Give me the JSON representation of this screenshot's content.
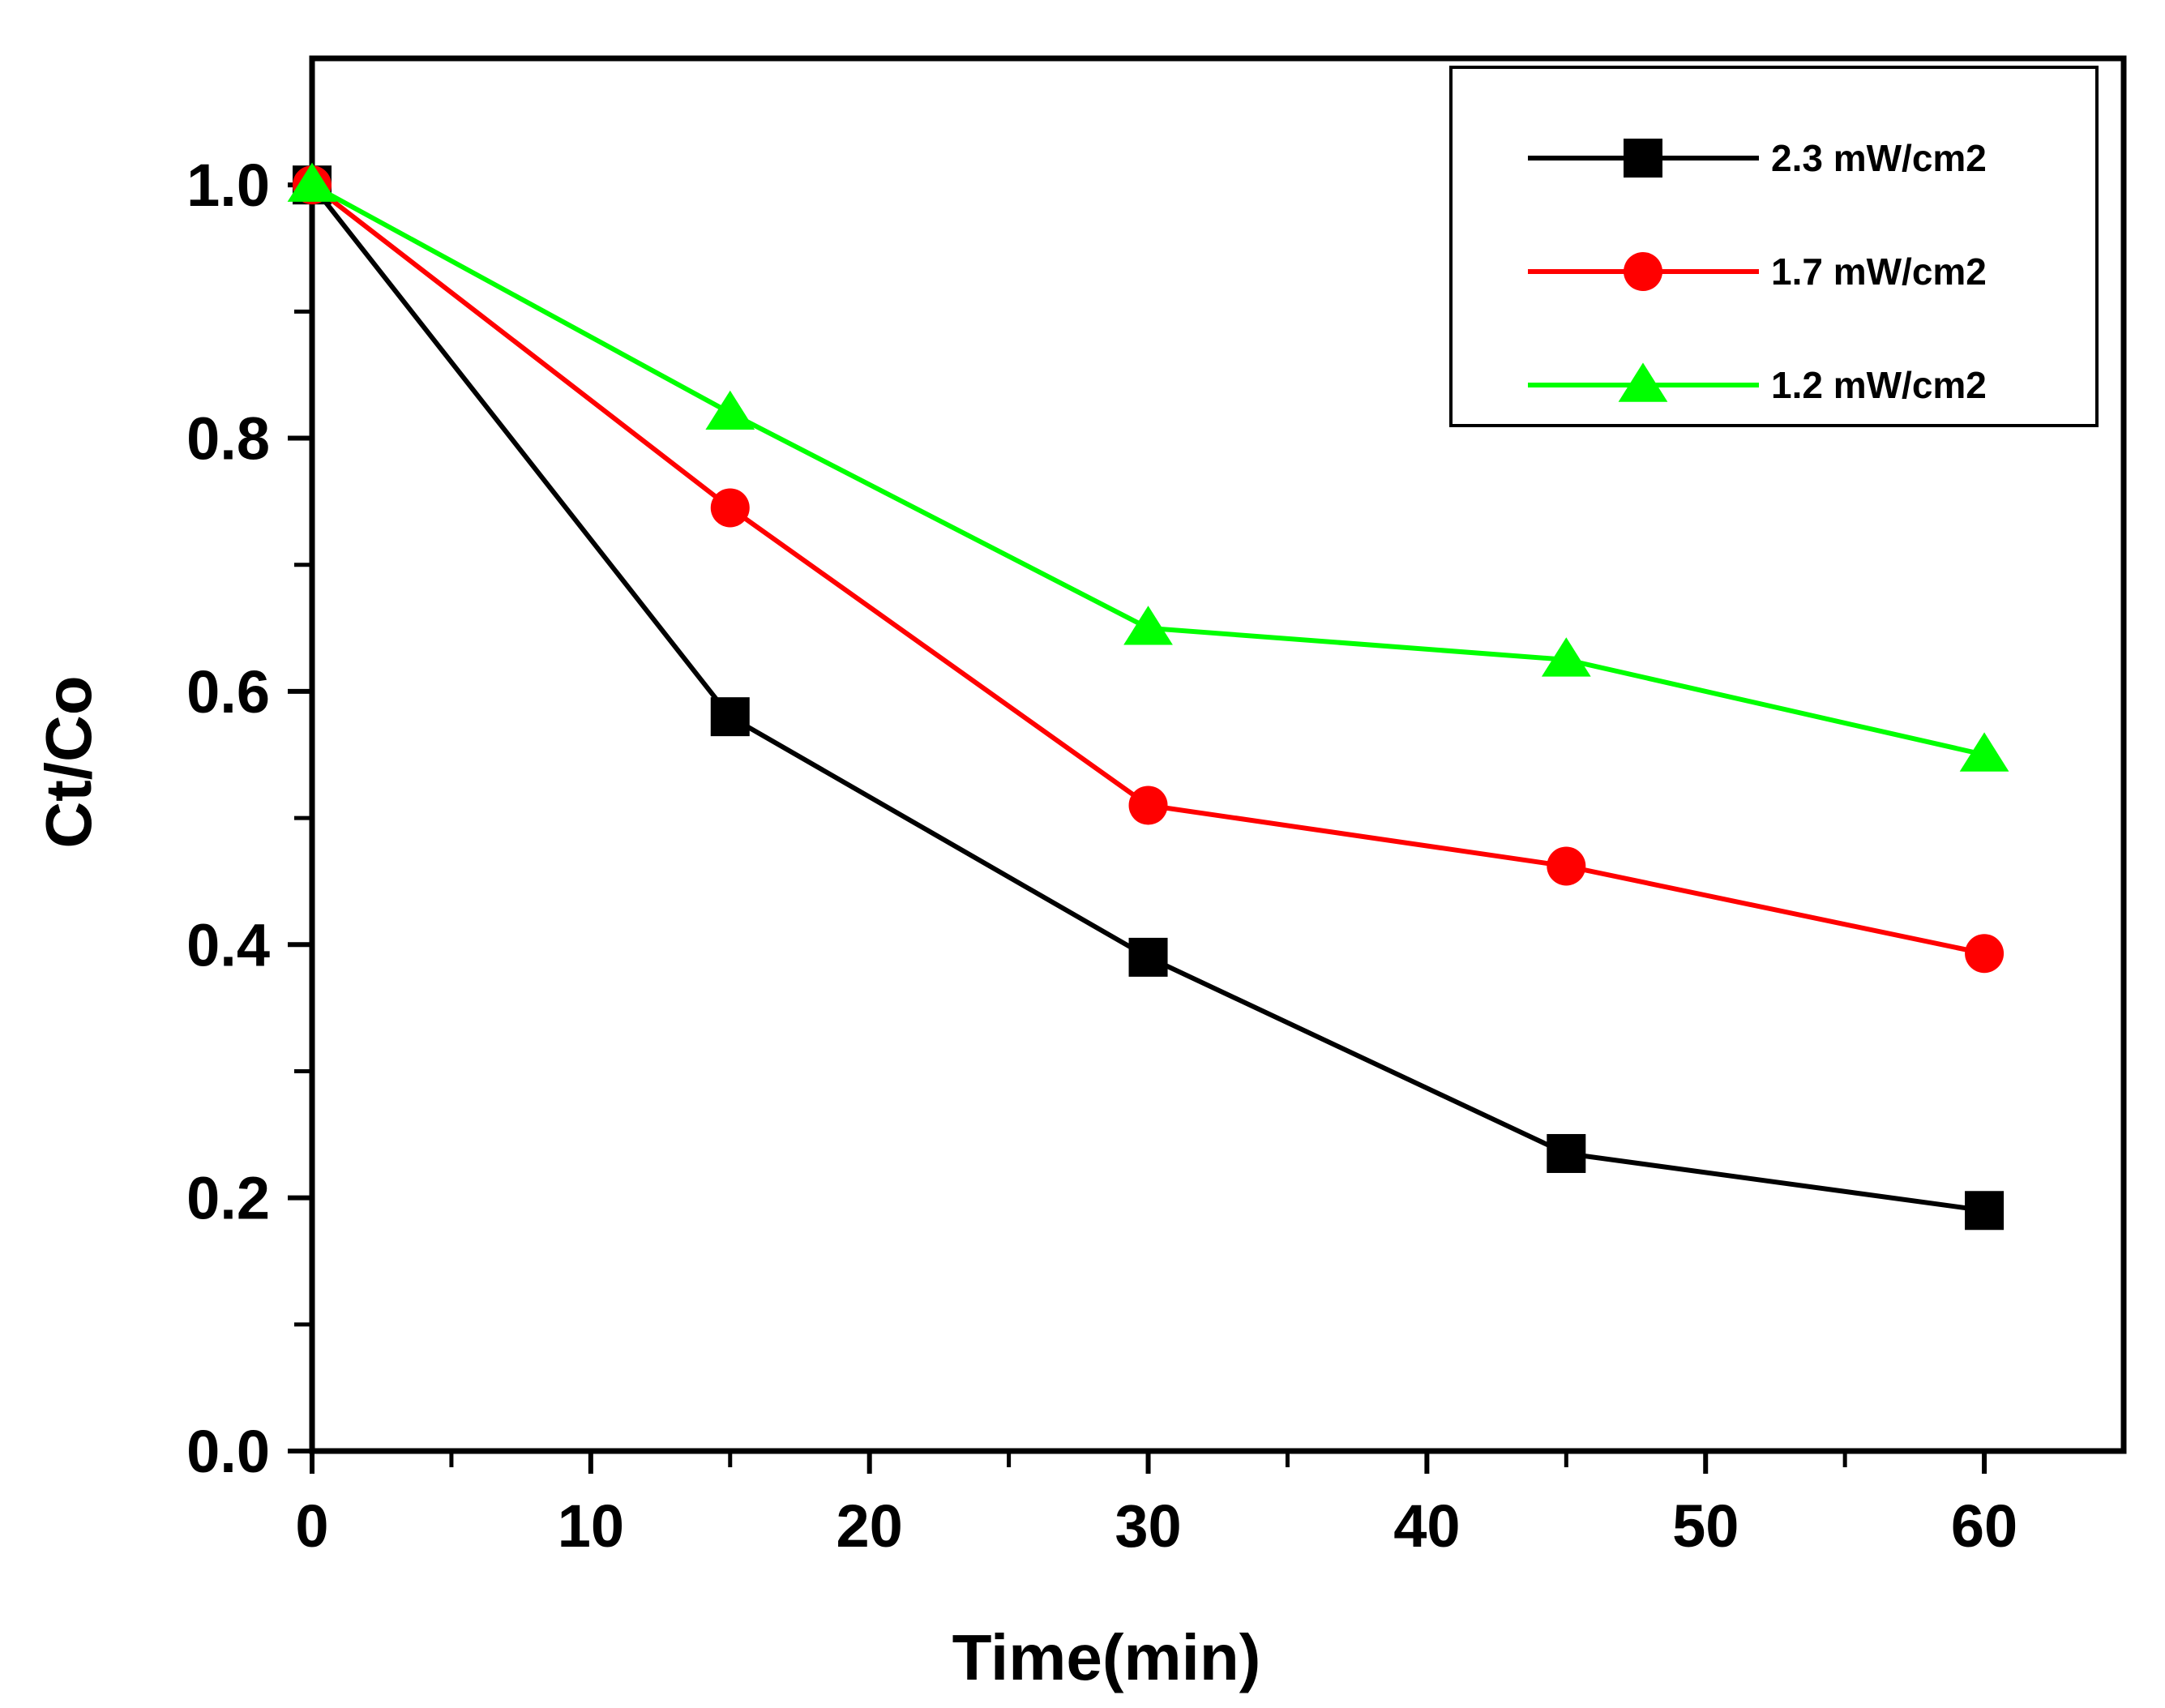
{
  "chart_data": {
    "type": "line",
    "title": "",
    "xlabel": "Time(min)",
    "ylabel": "Ct/Co",
    "xlim": [
      0,
      65
    ],
    "ylim": [
      0,
      1.1
    ],
    "x_ticks": [
      0,
      10,
      20,
      30,
      40,
      50,
      60
    ],
    "x_tick_labels": [
      "0",
      "10",
      "20",
      "30",
      "40",
      "50",
      "60"
    ],
    "y_ticks": [
      0.0,
      0.2,
      0.4,
      0.6,
      0.8,
      1.0
    ],
    "y_tick_labels": [
      "0.0",
      "0.2",
      "0.4",
      "0.6",
      "0.8",
      "1.0"
    ],
    "x": [
      0,
      15,
      30,
      45,
      60
    ],
    "legend_position": "top-right",
    "series": [
      {
        "name": "2.3 mW/cm2",
        "color": "#000000",
        "marker": "square",
        "values": [
          1.0,
          0.58,
          0.39,
          0.235,
          0.19
        ]
      },
      {
        "name": "1.7 mW/cm2",
        "color": "#ff0000",
        "marker": "circle",
        "values": [
          1.0,
          0.745,
          0.51,
          0.462,
          0.393
        ]
      },
      {
        "name": "1.2 mW/cm2",
        "color": "#00ff00",
        "marker": "triangle",
        "values": [
          1.0,
          0.82,
          0.65,
          0.625,
          0.55
        ]
      }
    ]
  }
}
